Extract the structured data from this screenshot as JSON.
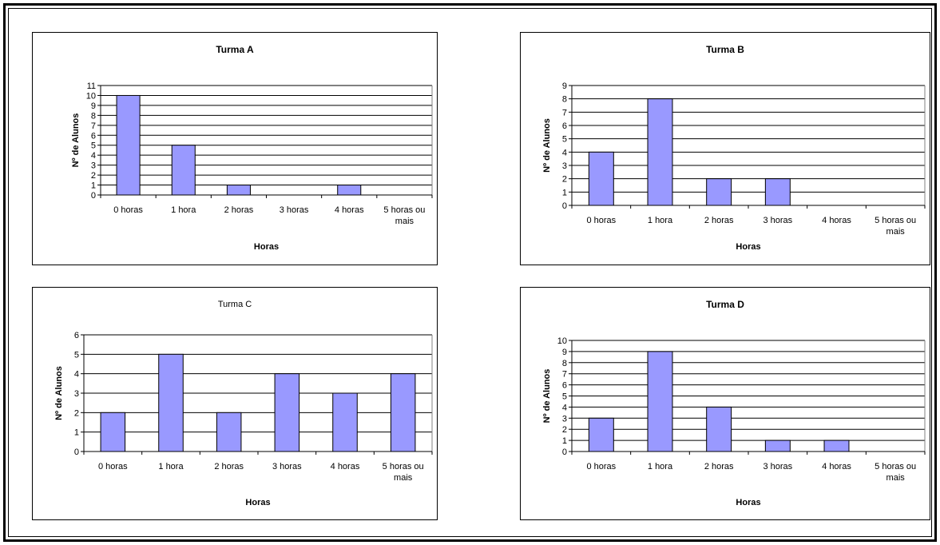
{
  "chart_data": [
    {
      "type": "bar",
      "title": "Turma A",
      "xlabel": "Horas",
      "ylabel": "Nº de Alunos",
      "categories": [
        "0 horas",
        "1 hora",
        "2 horas",
        "3 horas",
        "4 horas",
        "5 horas ou mais"
      ],
      "values": [
        10,
        5,
        1,
        0,
        1,
        0
      ],
      "ylim": [
        0,
        11
      ],
      "grid": true,
      "legend": "none"
    },
    {
      "type": "bar",
      "title": "Turma B",
      "xlabel": "Horas",
      "ylabel": "Nº de Alunos",
      "categories": [
        "0 horas",
        "1 hora",
        "2 horas",
        "3 horas",
        "4 horas",
        "5 horas ou mais"
      ],
      "values": [
        4,
        8,
        2,
        2,
        0,
        0
      ],
      "ylim": [
        0,
        9
      ],
      "grid": true,
      "legend": "none"
    },
    {
      "type": "bar",
      "title": "Turma C",
      "xlabel": "Horas",
      "ylabel": "Nº de Alunos",
      "categories": [
        "0 horas",
        "1 hora",
        "2 horas",
        "3 horas",
        "4 horas",
        "5 horas ou mais"
      ],
      "values": [
        2,
        5,
        2,
        4,
        3,
        4
      ],
      "ylim": [
        0,
        6
      ],
      "grid": true,
      "legend": "none"
    },
    {
      "type": "bar",
      "title": "Turma D",
      "xlabel": "Horas",
      "ylabel": "Nº de Alunos",
      "categories": [
        "0 horas",
        "1 hora",
        "2 horas",
        "3 horas",
        "4 horas",
        "5 horas ou mais"
      ],
      "values": [
        3,
        9,
        4,
        1,
        1,
        0
      ],
      "ylim": [
        0,
        10
      ],
      "grid": true,
      "legend": "none"
    }
  ],
  "colors": {
    "bar_fill": "#9999ff",
    "bar_stroke": "#000000",
    "grid": "#000000",
    "background": "#ffffff"
  }
}
